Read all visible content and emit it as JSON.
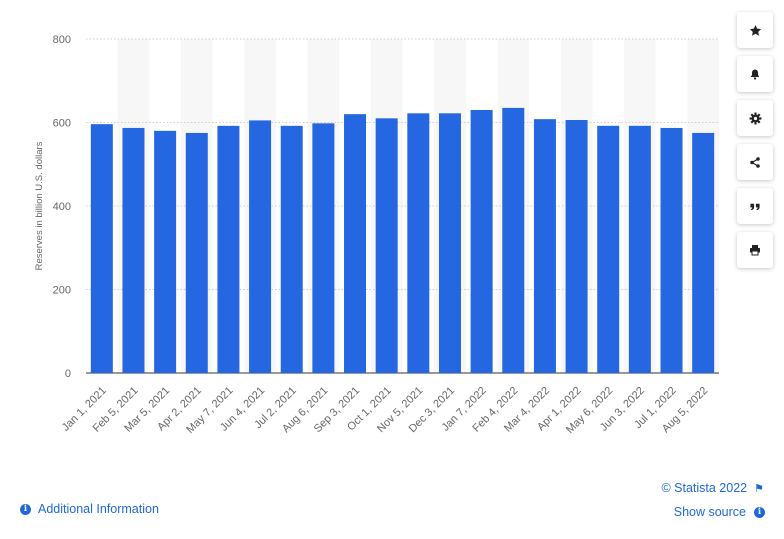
{
  "chart_data": {
    "type": "bar",
    "categories": [
      "Jan 1, 2021",
      "Feb 5, 2021",
      "Mar 5, 2021",
      "Apr 2, 2021",
      "May 7, 2021",
      "Jun 4, 2021",
      "Jul 2, 2021",
      "Aug 6, 2021",
      "Sep 3, 2021",
      "Oct 1, 2021",
      "Nov 5, 2021",
      "Dec 3, 2021",
      "Jan 7, 2022",
      "Feb 4, 2022",
      "Mar 4, 2022",
      "Apr 1, 2022",
      "May 6, 2022",
      "Jun 3, 2022",
      "Jul 1, 2022",
      "Aug 5, 2022"
    ],
    "values": [
      596,
      587,
      580,
      575,
      592,
      605,
      592,
      598,
      620,
      610,
      622,
      622,
      630,
      635,
      608,
      606,
      592,
      592,
      587,
      575
    ],
    "ylabel": "Reserves in billion U.S. dollars",
    "yticks": [
      0,
      200,
      400,
      600,
      800
    ],
    "ylim": [
      0,
      800
    ],
    "grid": true,
    "bar_color": "#2567e0",
    "band_color": "#f7f7f7"
  },
  "toolbar": {
    "buttons": [
      {
        "name": "favorite-star-icon",
        "icon": "star"
      },
      {
        "name": "notification-bell-icon",
        "icon": "bell"
      },
      {
        "name": "settings-gear-icon",
        "icon": "gear"
      },
      {
        "name": "share-icon",
        "icon": "share"
      },
      {
        "name": "citation-quote-icon",
        "icon": "quote"
      },
      {
        "name": "print-icon",
        "icon": "print"
      }
    ]
  },
  "footer": {
    "additional_info": "Additional Information",
    "copyright": "© Statista 2022",
    "show_source": "Show source",
    "link_color": "#1f68d6"
  }
}
